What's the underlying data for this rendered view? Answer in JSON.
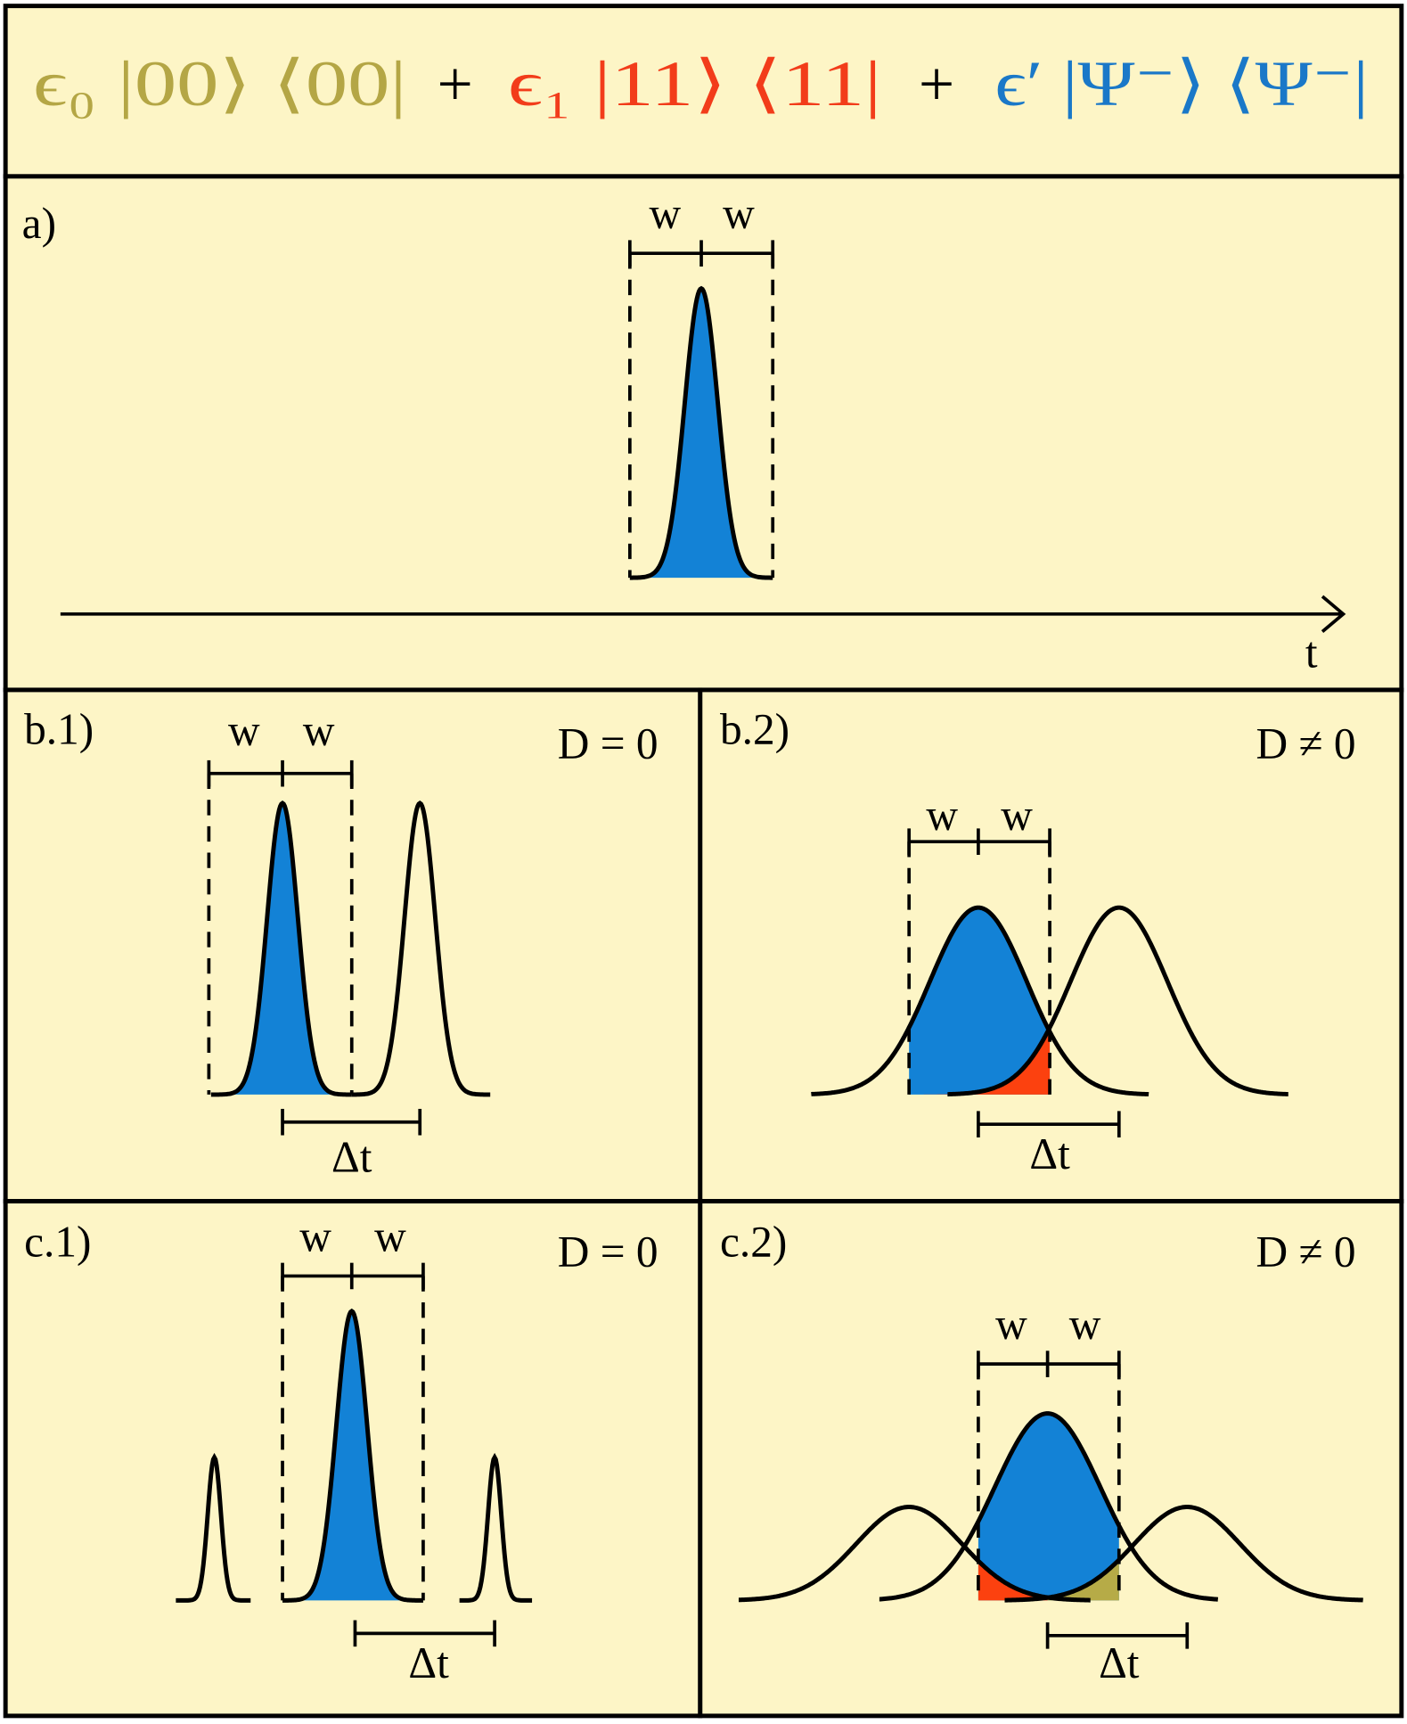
{
  "header": {
    "terms": [
      "ϵ₀ |00⟩ ⟨00|",
      "ϵ₁ |11⟩ ⟨11|",
      "ϵ′ |Ψ⁻⟩ ⟨Ψ⁻|"
    ],
    "operators": [
      "+",
      "+"
    ]
  },
  "panels": [
    {
      "label": "a)",
      "width_labels": [
        "w",
        "w"
      ],
      "axis_label": "t"
    },
    {
      "label": "b.1)",
      "condition": "D = 0",
      "width_labels": [
        "w",
        "w"
      ],
      "delay_label": "Δt"
    },
    {
      "label": "b.2)",
      "condition": "D ≠ 0",
      "width_labels": [
        "w",
        "w"
      ],
      "delay_label": "Δt"
    },
    {
      "label": "c.1)",
      "condition": "D = 0",
      "width_labels": [
        "w",
        "w"
      ],
      "delay_label": "Δt"
    },
    {
      "label": "c.2)",
      "condition": "D ≠ 0",
      "width_labels": [
        "w",
        "w"
      ],
      "delay_label": "Δt"
    }
  ]
}
